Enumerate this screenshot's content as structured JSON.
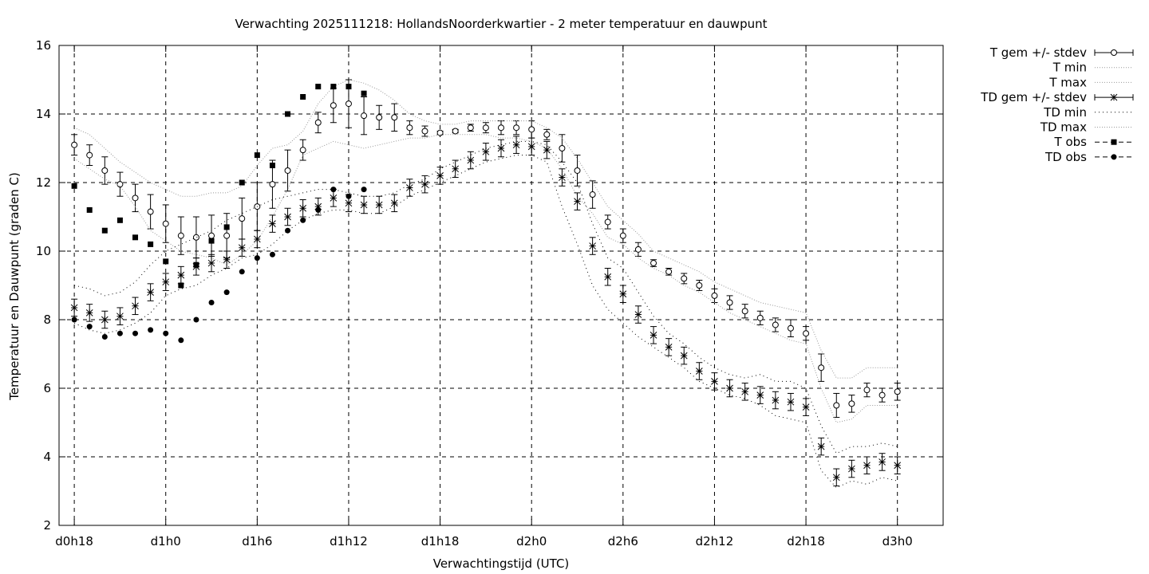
{
  "chart_data": {
    "type": "line",
    "title": "Verwachting 2025111218: HollandsNoorderkwartier - 2 meter temperatuur en dauwpunt",
    "xlabel": "Verwachtingstijd (UTC)",
    "ylabel": "Temperatuur en Dauwpunt (graden C)",
    "xlim": [
      -1,
      57
    ],
    "ylim": [
      2,
      16
    ],
    "x_unit": "hours since d0h18",
    "x_ticks": [
      {
        "x": 0,
        "label": "d0h18"
      },
      {
        "x": 6,
        "label": "d1h0"
      },
      {
        "x": 12,
        "label": "d1h6"
      },
      {
        "x": 18,
        "label": "d1h12"
      },
      {
        "x": 24,
        "label": "d1h18"
      },
      {
        "x": 30,
        "label": "d2h0"
      },
      {
        "x": 36,
        "label": "d2h6"
      },
      {
        "x": 42,
        "label": "d2h12"
      },
      {
        "x": 48,
        "label": "d2h18"
      },
      {
        "x": 54,
        "label": "d3h0"
      }
    ],
    "y_ticks": [
      2,
      4,
      6,
      8,
      10,
      12,
      14,
      16
    ],
    "grid": true,
    "legend_position": "outside-top-right",
    "legend": [
      "T gem +/- stdev",
      "T min",
      "T max",
      "TD gem +/- stdev",
      "TD min",
      "TD max",
      "T obs",
      "TD obs"
    ],
    "series": [
      {
        "name": "T gem +/- stdev",
        "style": "errorbar-open-circle",
        "x": [
          0,
          1,
          2,
          3,
          4,
          5,
          6,
          7,
          8,
          9,
          10,
          11,
          12,
          13,
          14,
          15,
          16,
          17,
          18,
          19,
          20,
          21,
          22,
          23,
          24,
          25,
          26,
          27,
          28,
          29,
          30,
          31,
          32,
          33,
          34,
          35,
          36,
          37,
          38,
          39,
          40,
          41,
          42,
          43,
          44,
          45,
          46,
          47,
          48,
          49,
          50,
          51,
          52,
          53,
          54
        ],
        "values": [
          13.1,
          12.8,
          12.35,
          11.95,
          11.55,
          11.15,
          10.8,
          10.45,
          10.4,
          10.45,
          10.45,
          10.95,
          11.3,
          11.95,
          12.35,
          12.95,
          13.75,
          14.25,
          14.3,
          13.95,
          13.9,
          13.9,
          13.6,
          13.5,
          13.45,
          13.5,
          13.6,
          13.6,
          13.6,
          13.6,
          13.55,
          13.4,
          13.0,
          12.35,
          11.65,
          10.85,
          10.45,
          10.05,
          9.65,
          9.4,
          9.2,
          9.0,
          8.7,
          8.5,
          8.25,
          8.05,
          7.85,
          7.75,
          7.6,
          6.6,
          5.5,
          5.55,
          5.95,
          5.8,
          5.9
        ],
        "stdev": [
          0.3,
          0.3,
          0.4,
          0.35,
          0.4,
          0.5,
          0.55,
          0.55,
          0.6,
          0.6,
          0.65,
          0.6,
          0.7,
          0.7,
          0.6,
          0.3,
          0.3,
          0.5,
          0.7,
          0.55,
          0.35,
          0.4,
          0.2,
          0.15,
          0.05,
          0.05,
          0.1,
          0.15,
          0.2,
          0.2,
          0.25,
          0.15,
          0.4,
          0.45,
          0.4,
          0.2,
          0.2,
          0.2,
          0.1,
          0.1,
          0.15,
          0.15,
          0.2,
          0.2,
          0.2,
          0.2,
          0.2,
          0.25,
          0.2,
          0.4,
          0.35,
          0.25,
          0.2,
          0.2,
          0.25
        ]
      },
      {
        "name": "T min",
        "style": "dotted",
        "x": [
          0,
          1,
          2,
          3,
          4,
          5,
          6,
          7,
          8,
          9,
          10,
          11,
          12,
          13,
          14,
          15,
          16,
          17,
          18,
          19,
          20,
          21,
          22,
          23,
          24,
          25,
          26,
          27,
          28,
          29,
          30,
          31,
          32,
          33,
          34,
          35,
          36,
          37,
          38,
          39,
          40,
          41,
          42,
          43,
          44,
          45,
          46,
          47,
          48,
          49,
          50,
          51,
          52,
          53,
          54
        ],
        "values": [
          12.7,
          12.4,
          12.1,
          11.9,
          11.3,
          10.6,
          10.3,
          10.0,
          9.9,
          9.8,
          9.6,
          9.9,
          10.3,
          11.0,
          11.8,
          12.8,
          13.0,
          13.2,
          13.1,
          13.0,
          13.1,
          13.2,
          13.3,
          13.3,
          13.4,
          13.4,
          13.4,
          13.4,
          13.3,
          13.3,
          13.2,
          13.0,
          12.4,
          11.6,
          11.1,
          10.4,
          10.2,
          9.8,
          9.5,
          9.3,
          9.0,
          8.8,
          8.5,
          8.2,
          8.0,
          7.8,
          7.6,
          7.4,
          7.3,
          6.0,
          5.0,
          5.1,
          5.5,
          5.5,
          5.5
        ]
      },
      {
        "name": "T max",
        "style": "dotted",
        "x": [
          0,
          1,
          2,
          3,
          4,
          5,
          6,
          7,
          8,
          9,
          10,
          11,
          12,
          13,
          14,
          15,
          16,
          17,
          18,
          19,
          20,
          21,
          22,
          23,
          24,
          25,
          26,
          27,
          28,
          29,
          30,
          31,
          32,
          33,
          34,
          35,
          36,
          37,
          38,
          39,
          40,
          41,
          42,
          43,
          44,
          45,
          46,
          47,
          48,
          49,
          50,
          51,
          52,
          53,
          54
        ],
        "values": [
          13.6,
          13.4,
          13.0,
          12.6,
          12.3,
          12.0,
          11.8,
          11.6,
          11.6,
          11.7,
          11.7,
          11.9,
          12.5,
          13.0,
          13.1,
          13.5,
          14.3,
          14.8,
          15.0,
          14.9,
          14.7,
          14.4,
          14.0,
          13.8,
          13.7,
          13.7,
          13.8,
          13.8,
          13.8,
          13.8,
          13.8,
          13.6,
          13.3,
          12.7,
          12.0,
          11.3,
          10.9,
          10.5,
          10.0,
          9.8,
          9.6,
          9.4,
          9.1,
          8.9,
          8.7,
          8.5,
          8.4,
          8.3,
          8.2,
          7.1,
          6.3,
          6.3,
          6.6,
          6.6,
          6.6
        ]
      },
      {
        "name": "TD gem +/- stdev",
        "style": "errorbar-star",
        "x": [
          0,
          1,
          2,
          3,
          4,
          5,
          6,
          7,
          8,
          9,
          10,
          11,
          12,
          13,
          14,
          15,
          16,
          17,
          18,
          19,
          20,
          21,
          22,
          23,
          24,
          25,
          26,
          27,
          28,
          29,
          30,
          31,
          32,
          33,
          34,
          35,
          36,
          37,
          38,
          39,
          40,
          41,
          42,
          43,
          44,
          45,
          46,
          47,
          48,
          49,
          50,
          51,
          52,
          53,
          54
        ],
        "values": [
          8.35,
          8.2,
          8.0,
          8.1,
          8.4,
          8.8,
          9.1,
          9.3,
          9.55,
          9.65,
          9.75,
          10.1,
          10.35,
          10.8,
          11.0,
          11.25,
          11.3,
          11.55,
          11.4,
          11.35,
          11.35,
          11.4,
          11.85,
          11.95,
          12.2,
          12.4,
          12.65,
          12.9,
          13.0,
          13.1,
          13.05,
          12.95,
          12.15,
          11.45,
          10.15,
          9.25,
          8.75,
          8.15,
          7.55,
          7.2,
          6.95,
          6.5,
          6.2,
          6.0,
          5.9,
          5.8,
          5.65,
          5.6,
          5.45,
          4.3,
          3.4,
          3.65,
          3.75,
          3.85,
          3.75
        ]
      },
      {
        "name": "TD min",
        "style": "dotted",
        "x": [
          0,
          1,
          2,
          3,
          4,
          5,
          6,
          7,
          8,
          9,
          10,
          11,
          12,
          13,
          14,
          15,
          16,
          17,
          18,
          19,
          20,
          21,
          22,
          23,
          24,
          25,
          26,
          27,
          28,
          29,
          30,
          31,
          32,
          33,
          34,
          35,
          36,
          37,
          38,
          39,
          40,
          41,
          42,
          43,
          44,
          45,
          46,
          47,
          48,
          49,
          50,
          51,
          52,
          53,
          54
        ],
        "values": [
          7.9,
          7.7,
          7.6,
          7.7,
          7.9,
          8.2,
          8.7,
          8.9,
          9.0,
          9.3,
          9.5,
          9.8,
          9.9,
          10.2,
          10.6,
          10.9,
          11.1,
          11.2,
          11.2,
          11.1,
          11.1,
          11.3,
          11.6,
          11.8,
          12.0,
          12.2,
          12.4,
          12.6,
          12.7,
          12.8,
          12.8,
          12.6,
          11.3,
          10.2,
          9.0,
          8.3,
          7.9,
          7.5,
          7.2,
          6.9,
          6.6,
          6.2,
          6.0,
          5.8,
          5.7,
          5.5,
          5.2,
          5.1,
          5.0,
          3.6,
          3.1,
          3.3,
          3.2,
          3.4,
          3.3
        ]
      },
      {
        "name": "TD max",
        "style": "dotted",
        "x": [
          0,
          1,
          2,
          3,
          4,
          5,
          6,
          7,
          8,
          9,
          10,
          11,
          12,
          13,
          14,
          15,
          16,
          17,
          18,
          19,
          20,
          21,
          22,
          23,
          24,
          25,
          26,
          27,
          28,
          29,
          30,
          31,
          32,
          33,
          34,
          35,
          36,
          37,
          38,
          39,
          40,
          41,
          42,
          43,
          44,
          45,
          46,
          47,
          48,
          49,
          50,
          51,
          52,
          53,
          54
        ],
        "values": [
          9.0,
          8.9,
          8.7,
          8.8,
          9.1,
          9.6,
          10.0,
          10.2,
          10.4,
          10.6,
          10.9,
          11.1,
          11.3,
          11.5,
          11.6,
          11.7,
          11.8,
          11.8,
          11.7,
          11.6,
          11.6,
          11.7,
          11.95,
          12.1,
          12.4,
          12.6,
          12.8,
          13.0,
          13.1,
          13.2,
          13.2,
          13.1,
          12.6,
          12.0,
          10.8,
          9.8,
          9.5,
          8.8,
          8.1,
          7.6,
          7.3,
          6.9,
          6.6,
          6.4,
          6.3,
          6.4,
          6.2,
          6.2,
          6.0,
          4.9,
          4.1,
          4.3,
          4.3,
          4.4,
          4.3
        ]
      },
      {
        "name": "T obs",
        "style": "filled-square",
        "x": [
          0,
          1,
          2,
          3,
          4,
          5,
          6,
          7,
          8,
          9,
          10,
          11,
          12,
          13,
          14,
          15,
          16,
          17,
          18,
          19
        ],
        "values": [
          11.9,
          11.2,
          10.6,
          10.9,
          10.4,
          10.2,
          9.7,
          9.0,
          9.6,
          10.3,
          10.7,
          12.0,
          12.8,
          12.5,
          14.0,
          14.5,
          14.8,
          14.8,
          14.8,
          14.6
        ]
      },
      {
        "name": "TD obs",
        "style": "filled-circle",
        "x": [
          0,
          1,
          2,
          3,
          4,
          5,
          6,
          7,
          8,
          9,
          10,
          11,
          12,
          13,
          14,
          15,
          16,
          17,
          18,
          19
        ],
        "values": [
          8.0,
          7.8,
          7.5,
          7.6,
          7.6,
          7.7,
          7.6,
          7.4,
          8.0,
          8.5,
          8.8,
          9.4,
          9.8,
          9.9,
          10.6,
          10.9,
          11.2,
          11.8,
          11.6,
          11.8
        ]
      }
    ]
  }
}
